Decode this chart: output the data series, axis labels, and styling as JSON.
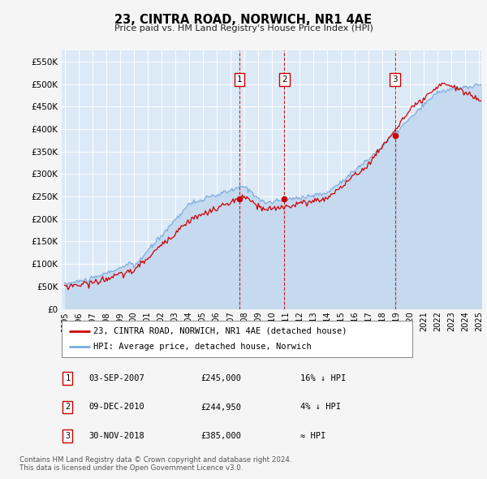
{
  "title": "23, CINTRA ROAD, NORWICH, NR1 4AE",
  "subtitle": "Price paid vs. HM Land Registry's House Price Index (HPI)",
  "ylim": [
    0,
    575000
  ],
  "yticks": [
    0,
    50000,
    100000,
    150000,
    200000,
    250000,
    300000,
    350000,
    400000,
    450000,
    500000,
    550000
  ],
  "ytick_labels": [
    "£0",
    "£50K",
    "£100K",
    "£150K",
    "£200K",
    "£250K",
    "£300K",
    "£350K",
    "£400K",
    "£450K",
    "£500K",
    "£550K"
  ],
  "background_color": "#f5f5f5",
  "plot_bg_color": "#dce9f7",
  "grid_color": "#ffffff",
  "sale_color": "#cc0000",
  "hpi_color": "#7aaddc",
  "hpi_fill_color": "#c5d9ef",
  "sale_labels": [
    "1",
    "2",
    "3"
  ],
  "sale_year_nums": [
    2007.67,
    2010.92,
    2018.92
  ],
  "sale_prices": [
    245000,
    244950,
    385000
  ],
  "legend_sale": "23, CINTRA ROAD, NORWICH, NR1 4AE (detached house)",
  "legend_hpi": "HPI: Average price, detached house, Norwich",
  "table_data": [
    [
      "1",
      "03-SEP-2007",
      "£245,000",
      "16% ↓ HPI"
    ],
    [
      "2",
      "09-DEC-2010",
      "£244,950",
      "4% ↓ HPI"
    ],
    [
      "3",
      "30-NOV-2018",
      "£385,000",
      "≈ HPI"
    ]
  ],
  "footer": "Contains HM Land Registry data © Crown copyright and database right 2024.\nThis data is licensed under the Open Government Licence v3.0.",
  "x_start_year": 1995,
  "x_end_year": 2025
}
